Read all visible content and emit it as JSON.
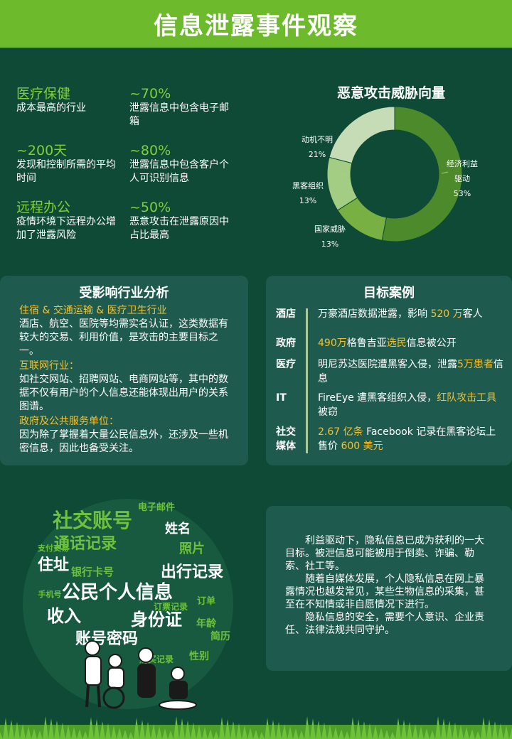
{
  "header": {
    "title": "信息泄露事件观察"
  },
  "stats": [
    {
      "key": "医疗保健",
      "desc": "成本最高的行业"
    },
    {
      "key": "~70%",
      "desc": "泄露信息中包含电子邮箱"
    },
    {
      "key": "~200天",
      "desc": "发现和控制所需的平均时间"
    },
    {
      "key": "~80%",
      "desc": "泄露信息中包含客户个人可识别信息"
    },
    {
      "key": "远程办公",
      "desc": "疫情环境下远程办公增加了泄露风险"
    },
    {
      "key": "~50%",
      "desc": "恶意攻击在泄露原因中占比最高"
    }
  ],
  "chart_data": {
    "type": "pie",
    "title": "恶意攻击威胁向量",
    "labels": [
      "经济利益驱动",
      "国家威胁",
      "黑客组织",
      "动机不明"
    ],
    "values": [
      53,
      13,
      13,
      21
    ],
    "value_labels": [
      "53%",
      "13%",
      "13%",
      "21%"
    ],
    "colors": [
      "#4c8a2c",
      "#79b043",
      "#a3cd82",
      "#c6dcb6"
    ]
  },
  "donut_labels": {
    "econ_1": "经济利益",
    "econ_2": "驱动",
    "econ_pct": "53%",
    "state": "国家威胁",
    "state_pct": "13%",
    "hacker": "黑客组织",
    "hacker_pct": "13%",
    "unknown": "动机不明",
    "unknown_pct": "21%"
  },
  "industry": {
    "title": "受影响行业分析",
    "items": [
      {
        "head": "住宿 & 交通运输 & 医疗卫生行业",
        "text": "酒店、航空、医院等均需实名认证，这类数据有较大的交易、利用价值，是攻击的主要目标之一。"
      },
      {
        "head": "互联网行业：",
        "text": "如社交网站、招聘网站、电商网站等，其中的数据不仅有用户的个人信息还能体现出用户的关系图谱。"
      },
      {
        "head": "政府及公共服务单位：",
        "text": "因为除了掌握着大量公民信息外，还涉及一些机密信息，因此也备受关注。"
      }
    ]
  },
  "cases": {
    "title": "目标案例",
    "items": [
      {
        "label": "酒店",
        "parts": [
          {
            "t": "万豪酒店数据泄露，影响 ",
            "h": false
          },
          {
            "t": "520 万",
            "h": true
          },
          {
            "t": "客人",
            "h": false
          }
        ]
      },
      {
        "label": "政府",
        "parts": [
          {
            "t": "490万",
            "h": true
          },
          {
            "t": "格鲁吉亚",
            "h": false
          },
          {
            "t": "选民",
            "h": true
          },
          {
            "t": "信息被公开",
            "h": false
          }
        ]
      },
      {
        "label": "医疗",
        "parts": [
          {
            "t": "明尼苏达医院遭黑客入侵，泄露",
            "h": false
          },
          {
            "t": "5万患者",
            "h": true
          },
          {
            "t": "信息",
            "h": false
          }
        ]
      },
      {
        "label": "IT",
        "parts": [
          {
            "t": "FireEye 遭黑客组织入侵，",
            "h": false
          },
          {
            "t": "红队攻击工具",
            "h": true
          },
          {
            "t": "被窃",
            "h": false
          }
        ]
      },
      {
        "label": "社交媒体",
        "parts": [
          {
            "t": "2.67 亿条",
            "h": true
          },
          {
            "t": " Facebook 记录在黑客论坛上售价 ",
            "h": false
          },
          {
            "t": "600 美元",
            "h": true
          }
        ]
      }
    ]
  },
  "word_cloud": {
    "words": [
      "社交账号",
      "通话记录",
      "姓名",
      "照片",
      "住址",
      "出行记录",
      "公民个人信息",
      "收入",
      "身份证",
      "年龄",
      "账号密码",
      "银行卡号",
      "性别",
      "简历",
      "订单",
      "电子邮件",
      "支付交易",
      "订票记录",
      "手机号",
      "购买记录"
    ]
  },
  "summary": {
    "paragraphs": [
      "利益驱动下，隐私信息已成为获利的一大目标。被泄信息可能被用于倒卖、诈骗、勒索、社工等。",
      "随着自媒体发展，个人隐私信息在网上暴露情况也越发常见，某些生物信息的采集，甚至在不知情或非自愿情况下进行。",
      "隐私信息的安全，需要个人意识、企业责任、法律法规共同守护。"
    ]
  },
  "colors": {
    "background": "#0f4a36",
    "header": "#6dbb2c",
    "accent_green": "#7fcf3a",
    "highlight": "#f5c12e",
    "panel": "#1f5a4e"
  }
}
